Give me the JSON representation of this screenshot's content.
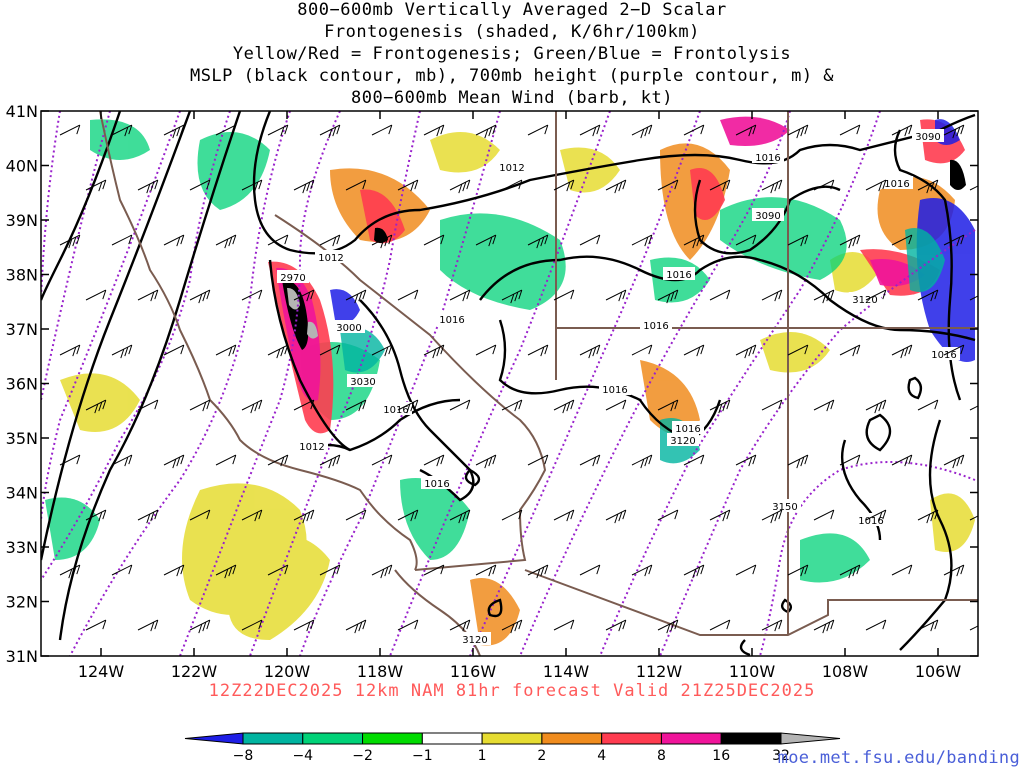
{
  "title_lines": [
    "800−600mb Vertically Averaged 2−D Scalar",
    "Frontogenesis (shaded, K/6hr/100km)",
    "Yellow/Red = Frontogenesis;  Green/Blue = Frontolysis",
    "MSLP (black contour, mb), 700mb height (purple contour, m) &",
    "800−600mb Mean Wind (barb, kt)"
  ],
  "lat_labels": [
    "41N",
    "40N",
    "39N",
    "38N",
    "37N",
    "36N",
    "35N",
    "34N",
    "33N",
    "32N",
    "31N"
  ],
  "lon_labels": [
    "124W",
    "122W",
    "120W",
    "118W",
    "116W",
    "114W",
    "112W",
    "110W",
    "108W",
    "106W"
  ],
  "forecast_text": "12Z22DEC2025 12km NAM 81hr forecast Valid 21Z25DEC2025",
  "credit_text": "moe.met.fsu.edu/banding",
  "colorbar": {
    "labels": [
      "−8",
      "−4",
      "−2",
      "−1",
      "1",
      "2",
      "4",
      "8",
      "16",
      "32"
    ],
    "colors": [
      "#1e1ee6",
      "#00b4a0",
      "#00d278",
      "#00dc00",
      "#ffffff",
      "#e6dc32",
      "#f08c1e",
      "#ff3c50",
      "#f0149a",
      "#000000",
      "#b4b4b4"
    ]
  },
  "mslp_labels": [
    "1012",
    "1012",
    "1016",
    "1016",
    "1016",
    "1016",
    "1016",
    "1016",
    "1016",
    "1016",
    "1012",
    "1016"
  ],
  "height_labels": [
    "2970",
    "3000",
    "3030",
    "3090",
    "3090",
    "3120",
    "3120",
    "3150",
    "3120"
  ]
}
